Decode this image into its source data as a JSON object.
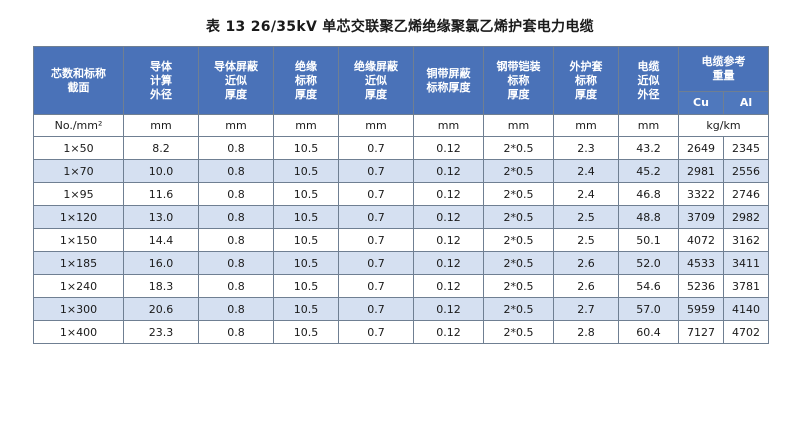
{
  "title": "表 13    26/35kV 单芯交联聚乙烯绝缘聚氯乙烯护套电力电缆",
  "headers": [
    [
      "芯数和标称",
      "截面"
    ],
    [
      "导体",
      "计算",
      "外径"
    ],
    [
      "导体屏蔽",
      "近似",
      "厚度"
    ],
    [
      "绝缘",
      "标称",
      "厚度"
    ],
    [
      "绝缘屏蔽",
      "近似",
      "厚度"
    ],
    [
      "铜带屏蔽",
      "标称厚度"
    ],
    [
      "钢带铠装",
      "标称",
      "厚度"
    ],
    [
      "外护套",
      "标称",
      "厚度"
    ],
    [
      "电缆",
      "近似",
      "外径"
    ]
  ],
  "weight_header": [
    "电缆参考",
    "重量"
  ],
  "weight_sub": [
    "Cu",
    "Al"
  ],
  "units": [
    "No./mm²",
    "mm",
    "mm",
    "mm",
    "mm",
    "mm",
    "mm",
    "mm",
    "mm",
    "kg/km"
  ],
  "rows": [
    [
      "1×50",
      "8.2",
      "0.8",
      "10.5",
      "0.7",
      "0.12",
      "2*0.5",
      "2.3",
      "43.2",
      "2649",
      "2345"
    ],
    [
      "1×70",
      "10.0",
      "0.8",
      "10.5",
      "0.7",
      "0.12",
      "2*0.5",
      "2.4",
      "45.2",
      "2981",
      "2556"
    ],
    [
      "1×95",
      "11.6",
      "0.8",
      "10.5",
      "0.7",
      "0.12",
      "2*0.5",
      "2.4",
      "46.8",
      "3322",
      "2746"
    ],
    [
      "1×120",
      "13.0",
      "0.8",
      "10.5",
      "0.7",
      "0.12",
      "2*0.5",
      "2.5",
      "48.8",
      "3709",
      "2982"
    ],
    [
      "1×150",
      "14.4",
      "0.8",
      "10.5",
      "0.7",
      "0.12",
      "2*0.5",
      "2.5",
      "50.1",
      "4072",
      "3162"
    ],
    [
      "1×185",
      "16.0",
      "0.8",
      "10.5",
      "0.7",
      "0.12",
      "2*0.5",
      "2.6",
      "52.0",
      "4533",
      "3411"
    ],
    [
      "1×240",
      "18.3",
      "0.8",
      "10.5",
      "0.7",
      "0.12",
      "2*0.5",
      "2.6",
      "54.6",
      "5236",
      "3781"
    ],
    [
      "1×300",
      "20.6",
      "0.8",
      "10.5",
      "0.7",
      "0.12",
      "2*0.5",
      "2.7",
      "57.0",
      "5959",
      "4140"
    ],
    [
      "1×400",
      "23.3",
      "0.8",
      "10.5",
      "0.7",
      "0.12",
      "2*0.5",
      "2.8",
      "60.4",
      "7127",
      "4702"
    ]
  ],
  "colors": {
    "header_bg": "#4a72b8",
    "stripe_bg": "#d5e0f1",
    "border": "#6f7f92"
  }
}
